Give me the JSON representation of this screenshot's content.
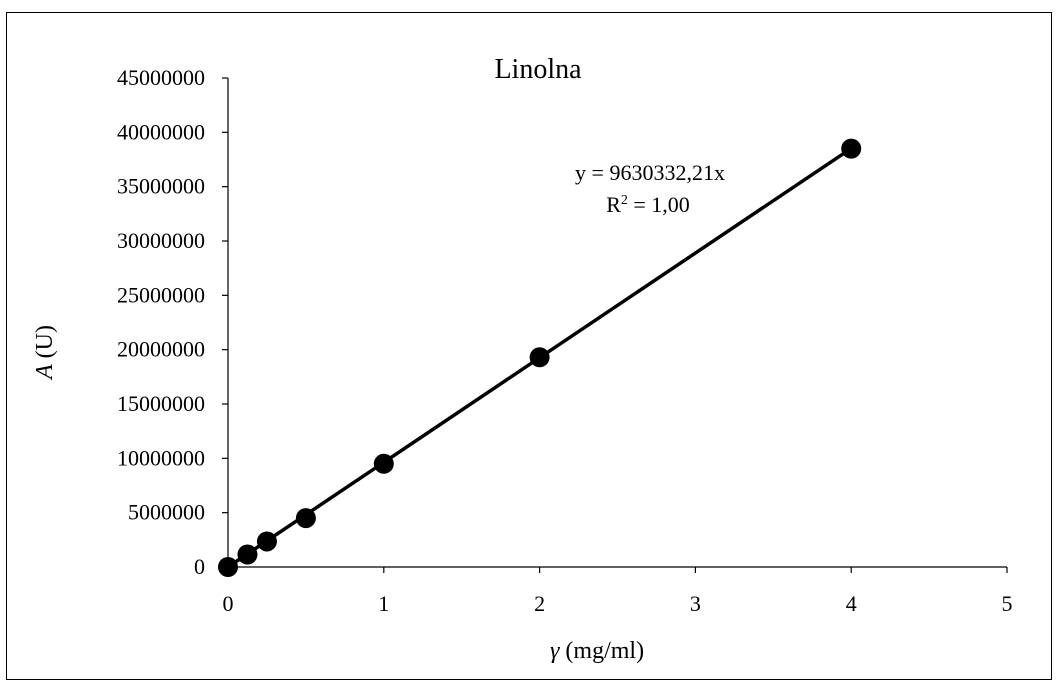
{
  "chart_data": {
    "type": "scatter",
    "title": "Linolna",
    "xlabel_symbol": "γ",
    "xlabel_unit": " (mg/ml)",
    "ylabel_symbol": "A",
    "ylabel_unit": " (U)",
    "xlim": [
      0,
      5
    ],
    "ylim": [
      0,
      45000000
    ],
    "x_ticks": [
      "0",
      "1",
      "2",
      "3",
      "4",
      "5"
    ],
    "y_ticks": [
      "0",
      "5000000",
      "10000000",
      "15000000",
      "20000000",
      "25000000",
      "30000000",
      "35000000",
      "40000000",
      "45000000"
    ],
    "grid": false,
    "series": [
      {
        "x": [
          0,
          0.125,
          0.25,
          0.5,
          1,
          2,
          4
        ],
        "y": [
          0,
          1150000,
          2350000,
          4500000,
          9500000,
          19300000,
          38500000
        ],
        "color": "#000000"
      }
    ],
    "trendline": {
      "slope": 9630332.21,
      "intercept": 0,
      "equation": "y = 9630332,21x",
      "r2_label": "R",
      "r2_sup": "2",
      "r2_value": " = 1,00"
    }
  }
}
